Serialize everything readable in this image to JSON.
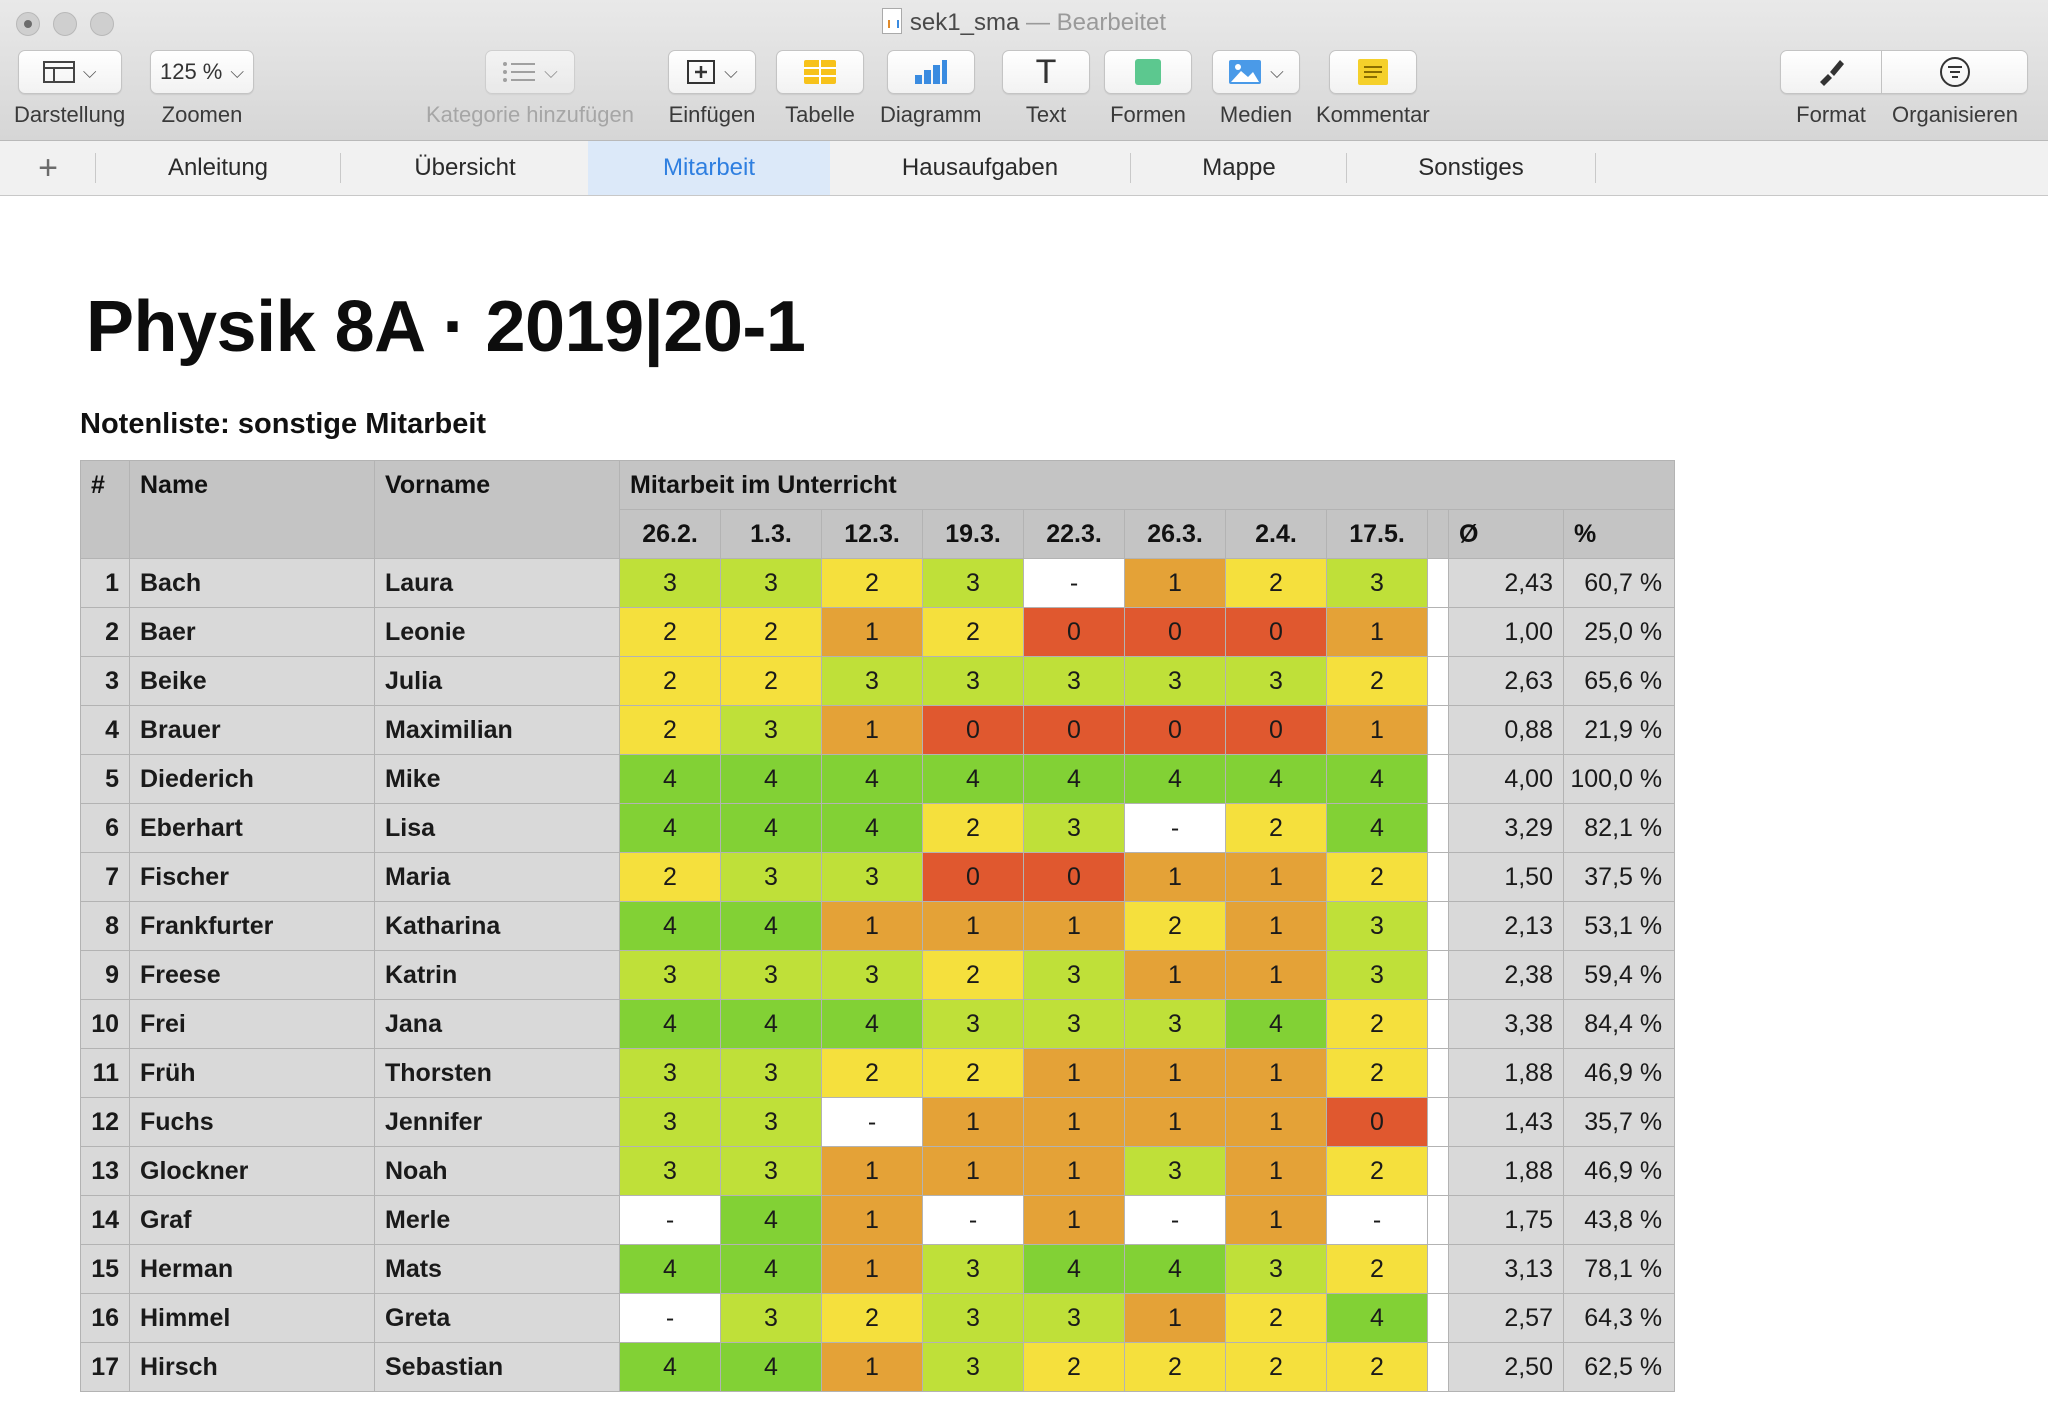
{
  "window": {
    "title": "sek1_sma",
    "separator": "—",
    "status": "Bearbeitet"
  },
  "toolbar": {
    "darstellung": "Darstellung",
    "zoom_value": "125 %",
    "zoomen": "Zoomen",
    "kategorie": "Kategorie hinzufügen",
    "einfuegen": "Einfügen",
    "tabelle": "Tabelle",
    "diagramm": "Diagramm",
    "text": "Text",
    "text_glyph": "T",
    "formen": "Formen",
    "medien": "Medien",
    "kommentar": "Kommentar",
    "format": "Format",
    "organisieren": "Organisieren"
  },
  "tabs": [
    "Anleitung",
    "Übersicht",
    "Mitarbeit",
    "Hausaufgaben",
    "Mappe",
    "Sonstiges"
  ],
  "active_tab": "Mitarbeit",
  "sheet": {
    "title": "Physik 8A · 2019|20-1",
    "subtitle": "Notenliste: sonstige Mitarbeit",
    "headers": {
      "num": "#",
      "name": "Name",
      "vorname": "Vorname",
      "group": "Mitarbeit im Unterricht",
      "avg": "Ø",
      "pct": "%"
    },
    "dates": [
      "26.2.",
      "1.3.",
      "12.3.",
      "19.3.",
      "22.3.",
      "26.3.",
      "2.4.",
      "17.5."
    ],
    "rows": [
      {
        "n": "1",
        "name": "Bach",
        "vorname": "Laura",
        "scores": [
          "3",
          "3",
          "2",
          "3",
          "-",
          "1",
          "2",
          "3"
        ],
        "avg": "2,43",
        "pct": "60,7 %"
      },
      {
        "n": "2",
        "name": "Baer",
        "vorname": "Leonie",
        "scores": [
          "2",
          "2",
          "1",
          "2",
          "0",
          "0",
          "0",
          "1"
        ],
        "avg": "1,00",
        "pct": "25,0 %"
      },
      {
        "n": "3",
        "name": "Beike",
        "vorname": "Julia",
        "scores": [
          "2",
          "2",
          "3",
          "3",
          "3",
          "3",
          "3",
          "2"
        ],
        "avg": "2,63",
        "pct": "65,6 %"
      },
      {
        "n": "4",
        "name": "Brauer",
        "vorname": "Maximilian",
        "scores": [
          "2",
          "3",
          "1",
          "0",
          "0",
          "0",
          "0",
          "1"
        ],
        "avg": "0,88",
        "pct": "21,9 %"
      },
      {
        "n": "5",
        "name": "Diederich",
        "vorname": "Mike",
        "scores": [
          "4",
          "4",
          "4",
          "4",
          "4",
          "4",
          "4",
          "4"
        ],
        "avg": "4,00",
        "pct": "100,0 %"
      },
      {
        "n": "6",
        "name": "Eberhart",
        "vorname": "Lisa",
        "scores": [
          "4",
          "4",
          "4",
          "2",
          "3",
          "-",
          "2",
          "4"
        ],
        "avg": "3,29",
        "pct": "82,1 %"
      },
      {
        "n": "7",
        "name": "Fischer",
        "vorname": "Maria",
        "scores": [
          "2",
          "3",
          "3",
          "0",
          "0",
          "1",
          "1",
          "2"
        ],
        "avg": "1,50",
        "pct": "37,5 %"
      },
      {
        "n": "8",
        "name": "Frankfurter",
        "vorname": "Katharina",
        "scores": [
          "4",
          "4",
          "1",
          "1",
          "1",
          "2",
          "1",
          "3"
        ],
        "avg": "2,13",
        "pct": "53,1 %"
      },
      {
        "n": "9",
        "name": "Freese",
        "vorname": "Katrin",
        "scores": [
          "3",
          "3",
          "3",
          "2",
          "3",
          "1",
          "1",
          "3"
        ],
        "avg": "2,38",
        "pct": "59,4 %"
      },
      {
        "n": "10",
        "name": "Frei",
        "vorname": "Jana",
        "scores": [
          "4",
          "4",
          "4",
          "3",
          "3",
          "3",
          "4",
          "2"
        ],
        "avg": "3,38",
        "pct": "84,4 %"
      },
      {
        "n": "11",
        "name": "Früh",
        "vorname": "Thorsten",
        "scores": [
          "3",
          "3",
          "2",
          "2",
          "1",
          "1",
          "1",
          "2"
        ],
        "avg": "1,88",
        "pct": "46,9 %"
      },
      {
        "n": "12",
        "name": "Fuchs",
        "vorname": "Jennifer",
        "scores": [
          "3",
          "3",
          "-",
          "1",
          "1",
          "1",
          "1",
          "0"
        ],
        "avg": "1,43",
        "pct": "35,7 %"
      },
      {
        "n": "13",
        "name": "Glockner",
        "vorname": "Noah",
        "scores": [
          "3",
          "3",
          "1",
          "1",
          "1",
          "3",
          "1",
          "2"
        ],
        "avg": "1,88",
        "pct": "46,9 %"
      },
      {
        "n": "14",
        "name": "Graf",
        "vorname": "Merle",
        "scores": [
          "-",
          "4",
          "1",
          "-",
          "1",
          "-",
          "1",
          "-"
        ],
        "avg": "1,75",
        "pct": "43,8 %"
      },
      {
        "n": "15",
        "name": "Herman",
        "vorname": "Mats",
        "scores": [
          "4",
          "4",
          "1",
          "3",
          "4",
          "4",
          "3",
          "2"
        ],
        "avg": "3,13",
        "pct": "78,1 %"
      },
      {
        "n": "16",
        "name": "Himmel",
        "vorname": "Greta",
        "scores": [
          "-",
          "3",
          "2",
          "3",
          "3",
          "1",
          "2",
          "4"
        ],
        "avg": "2,57",
        "pct": "64,3 %"
      },
      {
        "n": "17",
        "name": "Hirsch",
        "vorname": "Sebastian",
        "scores": [
          "4",
          "4",
          "1",
          "3",
          "2",
          "2",
          "2",
          "2"
        ],
        "avg": "2,50",
        "pct": "62,5 %"
      }
    ]
  },
  "score_colors": {
    "4": "#82d135",
    "3": "#bfe039",
    "2": "#f5e03d",
    "1": "#e4a237",
    "0": "#e0582f",
    "-": "#ffffff"
  },
  "icons": {
    "darstellung": "sidebar-layout-icon",
    "kategorie": "list-icon",
    "einfuegen": "insert-plus-icon",
    "tabelle": "table-icon",
    "diagramm": "bar-chart-icon",
    "formen": "shape-icon",
    "medien": "image-icon",
    "kommentar": "comment-icon",
    "format": "paintbrush-icon",
    "organisieren": "filter-icon"
  }
}
